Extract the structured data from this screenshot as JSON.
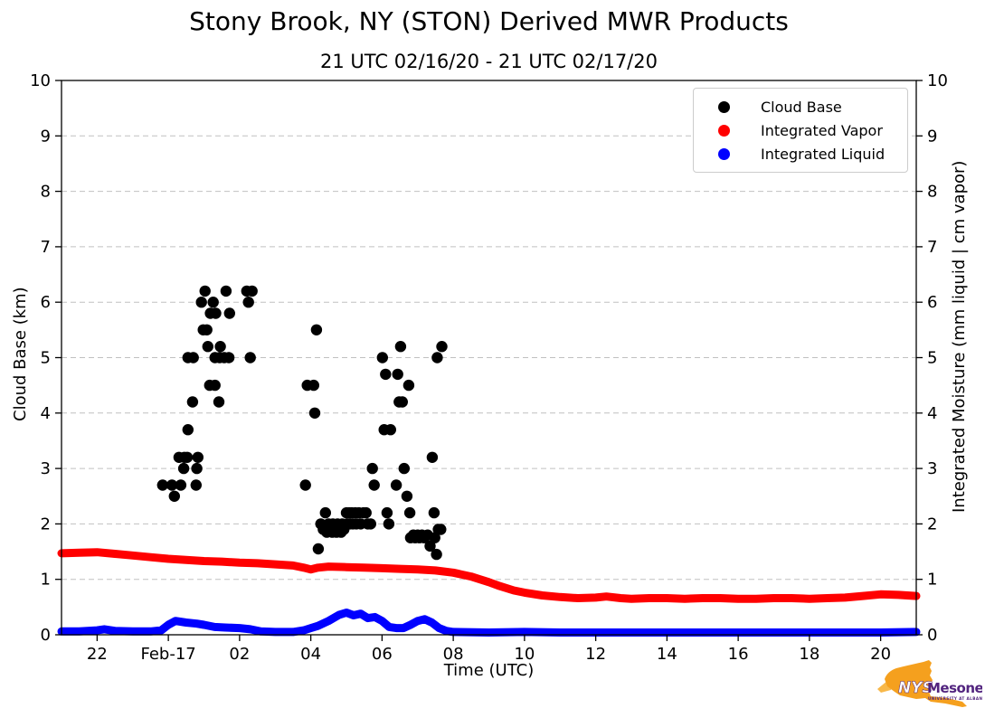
{
  "header": {
    "title": "Stony Brook, NY (STON) Derived MWR Products",
    "subtitle": "21 UTC 02/16/20 - 21 UTC 02/17/20"
  },
  "axes": {
    "x": {
      "label": "Time (UTC)",
      "ticks": [
        {
          "t": 1,
          "label": "22"
        },
        {
          "t": 3,
          "label": "Feb-17"
        },
        {
          "t": 5,
          "label": "02"
        },
        {
          "t": 7,
          "label": "04"
        },
        {
          "t": 9,
          "label": "06"
        },
        {
          "t": 11,
          "label": "08"
        },
        {
          "t": 13,
          "label": "10"
        },
        {
          "t": 15,
          "label": "12"
        },
        {
          "t": 17,
          "label": "14"
        },
        {
          "t": 19,
          "label": "16"
        },
        {
          "t": 21,
          "label": "18"
        },
        {
          "t": 23,
          "label": "20"
        }
      ]
    },
    "y_left": {
      "label": "Cloud Base (km)",
      "tick_labels": [
        "0",
        "1",
        "2",
        "3",
        "4",
        "5",
        "6",
        "7",
        "8",
        "9",
        "10"
      ]
    },
    "y_right": {
      "label": "Integrated Moisture (mm liquid | cm vapor)",
      "tick_labels": [
        "0",
        "1",
        "2",
        "3",
        "4",
        "5",
        "6",
        "7",
        "8",
        "9",
        "10"
      ]
    }
  },
  "legend": {
    "items": [
      {
        "label": "Cloud Base",
        "color": "#000000"
      },
      {
        "label": "Integrated Vapor",
        "color": "#ff0000"
      },
      {
        "label": "Integrated Liquid",
        "color": "#0000ff"
      }
    ]
  },
  "logo": {
    "acronym": "NYS",
    "name": "Mesonet",
    "tagline": "UNIVERSITY AT ALBANY",
    "orange": "#F5A01E",
    "orange_light": "#F8B84A",
    "purple": "#52247F"
  },
  "chart_data": {
    "type": "scatter",
    "title": "Stony Brook, NY (STON) Derived MWR Products",
    "subtitle": "21 UTC 02/16/20 - 21 UTC 02/17/20",
    "xlabel": "Time (UTC)",
    "x_unit": "hours after 21 UTC 02/16/20",
    "x_range": [
      0,
      24
    ],
    "ylim": [
      0,
      10
    ],
    "grid": "horizontal-dashed",
    "legend_position": "upper right",
    "series": [
      {
        "name": "Cloud Base",
        "type": "scatter",
        "color": "#000000",
        "axis": "left",
        "unit": "km",
        "points": [
          [
            2.84,
            2.7
          ],
          [
            3.1,
            2.7
          ],
          [
            3.17,
            2.5
          ],
          [
            3.3,
            3.2
          ],
          [
            3.35,
            2.7
          ],
          [
            3.43,
            3.0
          ],
          [
            3.45,
            3.2
          ],
          [
            3.53,
            3.2
          ],
          [
            3.55,
            3.7
          ],
          [
            3.55,
            5.0
          ],
          [
            3.68,
            4.2
          ],
          [
            3.7,
            5.0
          ],
          [
            3.78,
            2.7
          ],
          [
            3.8,
            3.0
          ],
          [
            3.83,
            3.2
          ],
          [
            3.93,
            6.0
          ],
          [
            3.98,
            5.5
          ],
          [
            4.03,
            6.2
          ],
          [
            4.08,
            5.5
          ],
          [
            4.11,
            5.2
          ],
          [
            4.16,
            4.5
          ],
          [
            4.18,
            5.8
          ],
          [
            4.26,
            6.0
          ],
          [
            4.31,
            4.5
          ],
          [
            4.31,
            5.0
          ],
          [
            4.33,
            5.8
          ],
          [
            4.42,
            4.2
          ],
          [
            4.44,
            5.0
          ],
          [
            4.46,
            5.2
          ],
          [
            4.57,
            5.0
          ],
          [
            4.62,
            6.2
          ],
          [
            4.7,
            5.0
          ],
          [
            4.72,
            5.8
          ],
          [
            5.2,
            6.2
          ],
          [
            5.25,
            6.0
          ],
          [
            5.3,
            5.0
          ],
          [
            5.35,
            6.2
          ],
          [
            6.85,
            2.7
          ],
          [
            6.9,
            4.5
          ],
          [
            7.08,
            4.5
          ],
          [
            7.11,
            4.0
          ],
          [
            7.16,
            5.5
          ],
          [
            7.21,
            1.55
          ],
          [
            7.28,
            2.0
          ],
          [
            7.35,
            1.9
          ],
          [
            7.41,
            2.2
          ],
          [
            7.45,
            1.85
          ],
          [
            7.5,
            2.0
          ],
          [
            7.55,
            1.9
          ],
          [
            7.6,
            1.85
          ],
          [
            7.62,
            2.0
          ],
          [
            7.68,
            1.9
          ],
          [
            7.72,
            1.85
          ],
          [
            7.75,
            2.0
          ],
          [
            7.8,
            1.9
          ],
          [
            7.85,
            1.85
          ],
          [
            7.88,
            2.0
          ],
          [
            7.93,
            1.9
          ],
          [
            8.0,
            2.2
          ],
          [
            8.02,
            2.0
          ],
          [
            8.08,
            2.2
          ],
          [
            8.1,
            2.0
          ],
          [
            8.15,
            2.2
          ],
          [
            8.18,
            2.0
          ],
          [
            8.25,
            2.2
          ],
          [
            8.28,
            2.0
          ],
          [
            8.35,
            2.2
          ],
          [
            8.4,
            2.0
          ],
          [
            8.48,
            2.2
          ],
          [
            8.55,
            2.2
          ],
          [
            8.6,
            2.0
          ],
          [
            8.68,
            2.0
          ],
          [
            8.73,
            3.0
          ],
          [
            8.78,
            2.7
          ],
          [
            9.01,
            5.0
          ],
          [
            9.06,
            3.7
          ],
          [
            9.1,
            4.7
          ],
          [
            9.14,
            2.2
          ],
          [
            9.19,
            2.0
          ],
          [
            9.24,
            3.7
          ],
          [
            9.4,
            2.7
          ],
          [
            9.44,
            4.7
          ],
          [
            9.48,
            4.2
          ],
          [
            9.52,
            5.2
          ],
          [
            9.57,
            4.2
          ],
          [
            9.62,
            3.0
          ],
          [
            9.7,
            2.5
          ],
          [
            9.75,
            4.5
          ],
          [
            9.78,
            2.2
          ],
          [
            9.8,
            1.75
          ],
          [
            9.88,
            1.8
          ],
          [
            9.93,
            1.75
          ],
          [
            10.0,
            1.8
          ],
          [
            10.05,
            1.75
          ],
          [
            10.12,
            1.8
          ],
          [
            10.18,
            1.75
          ],
          [
            10.28,
            1.8
          ],
          [
            10.35,
            1.6
          ],
          [
            10.41,
            3.2
          ],
          [
            10.46,
            2.2
          ],
          [
            10.48,
            1.75
          ],
          [
            10.53,
            1.45
          ],
          [
            10.55,
            5.0
          ],
          [
            10.58,
            1.9
          ],
          [
            10.65,
            1.9
          ],
          [
            10.68,
            5.2
          ]
        ]
      },
      {
        "name": "Integrated Vapor",
        "type": "line",
        "color": "#ff0000",
        "axis": "right",
        "unit": "cm",
        "points": [
          [
            0,
            1.47
          ],
          [
            0.5,
            1.48
          ],
          [
            1,
            1.49
          ],
          [
            1.5,
            1.46
          ],
          [
            2,
            1.43
          ],
          [
            2.5,
            1.4
          ],
          [
            3,
            1.37
          ],
          [
            3.5,
            1.35
          ],
          [
            4,
            1.33
          ],
          [
            4.5,
            1.32
          ],
          [
            5,
            1.3
          ],
          [
            5.5,
            1.29
          ],
          [
            6,
            1.27
          ],
          [
            6.5,
            1.25
          ],
          [
            6.8,
            1.21
          ],
          [
            7,
            1.18
          ],
          [
            7.2,
            1.21
          ],
          [
            7.5,
            1.23
          ],
          [
            8,
            1.22
          ],
          [
            8.5,
            1.21
          ],
          [
            9,
            1.2
          ],
          [
            9.5,
            1.19
          ],
          [
            10,
            1.18
          ],
          [
            10.5,
            1.16
          ],
          [
            11,
            1.12
          ],
          [
            11.5,
            1.05
          ],
          [
            12,
            0.95
          ],
          [
            12.3,
            0.88
          ],
          [
            12.7,
            0.8
          ],
          [
            13,
            0.76
          ],
          [
            13.5,
            0.71
          ],
          [
            14,
            0.68
          ],
          [
            14.5,
            0.66
          ],
          [
            15,
            0.67
          ],
          [
            15.3,
            0.69
          ],
          [
            15.7,
            0.66
          ],
          [
            16,
            0.65
          ],
          [
            16.5,
            0.66
          ],
          [
            17,
            0.66
          ],
          [
            17.5,
            0.65
          ],
          [
            18,
            0.66
          ],
          [
            18.5,
            0.66
          ],
          [
            19,
            0.65
          ],
          [
            19.5,
            0.65
          ],
          [
            20,
            0.66
          ],
          [
            20.5,
            0.66
          ],
          [
            21,
            0.65
          ],
          [
            21.5,
            0.66
          ],
          [
            22,
            0.67
          ],
          [
            22.5,
            0.7
          ],
          [
            23,
            0.73
          ],
          [
            23.5,
            0.72
          ],
          [
            24,
            0.7
          ]
        ]
      },
      {
        "name": "Integrated Liquid",
        "type": "line",
        "color": "#0000ff",
        "axis": "right",
        "unit": "mm",
        "points": [
          [
            0,
            0.06
          ],
          [
            0.5,
            0.06
          ],
          [
            1,
            0.08
          ],
          [
            1.2,
            0.1
          ],
          [
            1.5,
            0.07
          ],
          [
            2,
            0.06
          ],
          [
            2.5,
            0.06
          ],
          [
            2.8,
            0.08
          ],
          [
            3,
            0.18
          ],
          [
            3.2,
            0.25
          ],
          [
            3.5,
            0.22
          ],
          [
            3.8,
            0.2
          ],
          [
            4,
            0.18
          ],
          [
            4.3,
            0.14
          ],
          [
            4.6,
            0.13
          ],
          [
            5,
            0.12
          ],
          [
            5.3,
            0.1
          ],
          [
            5.6,
            0.06
          ],
          [
            6,
            0.05
          ],
          [
            6.5,
            0.05
          ],
          [
            6.8,
            0.08
          ],
          [
            7,
            0.12
          ],
          [
            7.2,
            0.16
          ],
          [
            7.5,
            0.25
          ],
          [
            7.8,
            0.36
          ],
          [
            8,
            0.4
          ],
          [
            8.2,
            0.35
          ],
          [
            8.4,
            0.38
          ],
          [
            8.6,
            0.3
          ],
          [
            8.8,
            0.32
          ],
          [
            9,
            0.25
          ],
          [
            9.2,
            0.14
          ],
          [
            9.4,
            0.12
          ],
          [
            9.6,
            0.12
          ],
          [
            9.8,
            0.18
          ],
          [
            10,
            0.25
          ],
          [
            10.2,
            0.28
          ],
          [
            10.4,
            0.22
          ],
          [
            10.6,
            0.12
          ],
          [
            10.8,
            0.07
          ],
          [
            11,
            0.05
          ],
          [
            12,
            0.04
          ],
          [
            13,
            0.05
          ],
          [
            14,
            0.04
          ],
          [
            15,
            0.04
          ],
          [
            16,
            0.04
          ],
          [
            17,
            0.04
          ],
          [
            18,
            0.04
          ],
          [
            19,
            0.04
          ],
          [
            20,
            0.04
          ],
          [
            21,
            0.04
          ],
          [
            22,
            0.04
          ],
          [
            23,
            0.04
          ],
          [
            24,
            0.05
          ]
        ]
      }
    ]
  }
}
